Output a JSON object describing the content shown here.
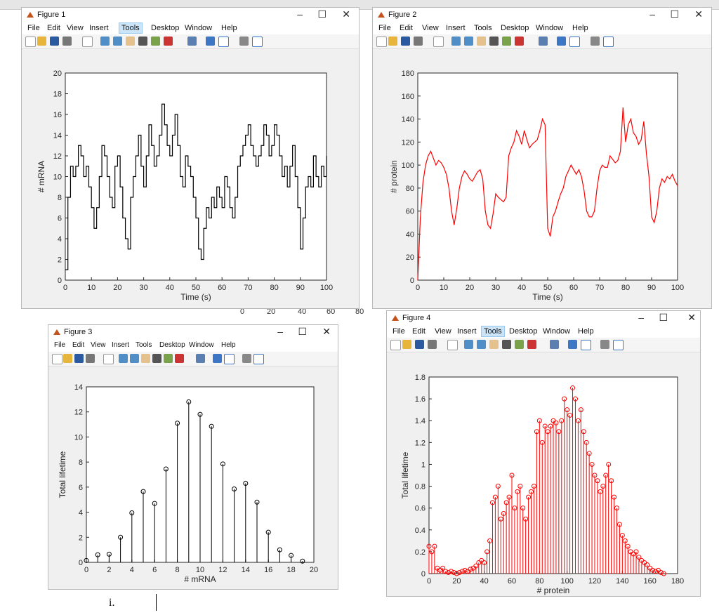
{
  "colors": {
    "black": "#000000",
    "red": "#ff0000",
    "window_bg": "#f0f0f0",
    "accent": "#cce4f7"
  },
  "menus": [
    "File",
    "Edit",
    "View",
    "Insert",
    "Tools",
    "Desktop",
    "Window",
    "Help"
  ],
  "window_controls": {
    "minimize": "–",
    "maximize": "☐",
    "close": "✕"
  },
  "background": {
    "tick_labels": [
      "0",
      "20",
      "40",
      "60",
      "80"
    ]
  },
  "caption": "i.",
  "figures": {
    "f1": {
      "title": "Figure 1",
      "xlabel": "Time (s)",
      "ylabel": "# mRNA",
      "xticks": [
        "0",
        "10",
        "20",
        "30",
        "40",
        "50",
        "60",
        "70",
        "80",
        "90",
        "100"
      ],
      "yticks": [
        "0",
        "2",
        "4",
        "6",
        "8",
        "10",
        "12",
        "14",
        "16",
        "18",
        "20"
      ]
    },
    "f2": {
      "title": "Figure 2",
      "xlabel": "Time (s)",
      "ylabel": "# protein",
      "xticks": [
        "0",
        "10",
        "20",
        "30",
        "40",
        "50",
        "60",
        "70",
        "80",
        "90",
        "100"
      ],
      "yticks": [
        "0",
        "20",
        "40",
        "60",
        "80",
        "100",
        "120",
        "140",
        "160",
        "180"
      ]
    },
    "f3": {
      "title": "Figure 3",
      "xlabel": "# mRNA",
      "ylabel": "Total lifetime",
      "xticks": [
        "0",
        "2",
        "4",
        "6",
        "8",
        "10",
        "12",
        "14",
        "16",
        "18",
        "20"
      ],
      "yticks": [
        "0",
        "2",
        "4",
        "6",
        "8",
        "10",
        "12",
        "14"
      ]
    },
    "f4": {
      "title": "Figure 4",
      "xlabel": "# protein",
      "ylabel": "Total lifetime",
      "xticks": [
        "0",
        "20",
        "40",
        "60",
        "80",
        "100",
        "120",
        "140",
        "160",
        "180"
      ],
      "yticks": [
        "0",
        "0.2",
        "0.4",
        "0.6",
        "0.8",
        "1",
        "1.2",
        "1.4",
        "1.6",
        "1.8"
      ]
    }
  },
  "chart_data": [
    {
      "type": "line",
      "title": "",
      "xlabel": "Time (s)",
      "ylabel": "# mRNA",
      "xlim": [
        0,
        100
      ],
      "ylim": [
        0,
        20
      ],
      "grid": false,
      "series": [
        {
          "color": "#000000",
          "step": true,
          "x": [
            0,
            1,
            2,
            3,
            4,
            5,
            6,
            7,
            8,
            9,
            10,
            11,
            12,
            13,
            14,
            15,
            16,
            17,
            18,
            19,
            20,
            21,
            22,
            23,
            24,
            25,
            26,
            27,
            28,
            29,
            30,
            31,
            32,
            33,
            34,
            35,
            36,
            37,
            38,
            39,
            40,
            41,
            42,
            43,
            44,
            45,
            46,
            47,
            48,
            49,
            50,
            51,
            52,
            53,
            54,
            55,
            56,
            57,
            58,
            59,
            60,
            61,
            62,
            63,
            64,
            65,
            66,
            67,
            68,
            69,
            70,
            71,
            72,
            73,
            74,
            75,
            76,
            77,
            78,
            79,
            80,
            81,
            82,
            83,
            84,
            85,
            86,
            87,
            88,
            89,
            90,
            91,
            92,
            93,
            94,
            95,
            96,
            97,
            98,
            99,
            100
          ],
          "y": [
            1,
            8,
            11,
            10,
            11,
            13,
            12,
            10,
            11,
            9,
            7,
            5,
            7,
            10,
            13,
            12,
            10,
            8,
            7,
            11,
            12,
            9,
            6,
            4,
            3,
            8,
            10,
            12,
            14,
            11,
            9,
            12,
            15,
            13,
            11,
            12,
            14,
            17,
            15,
            13,
            12,
            14,
            16,
            13,
            10,
            9,
            12,
            11,
            10,
            8,
            6,
            3,
            2,
            5,
            7,
            6,
            8,
            7,
            9,
            8,
            7,
            10,
            9,
            7,
            6,
            8,
            11,
            12,
            13,
            14,
            15,
            13,
            12,
            11,
            12,
            13,
            15,
            14,
            12,
            13,
            15,
            14,
            12,
            10,
            11,
            9,
            11,
            13,
            10,
            7,
            3,
            6,
            9,
            10,
            9,
            12,
            10,
            9,
            11,
            10,
            12
          ]
        }
      ]
    },
    {
      "type": "line",
      "title": "",
      "xlabel": "Time (s)",
      "ylabel": "# protein",
      "xlim": [
        0,
        100
      ],
      "ylim": [
        0,
        180
      ],
      "grid": false,
      "series": [
        {
          "color": "#ff0000",
          "x": [
            0,
            1,
            2,
            3,
            4,
            5,
            6,
            7,
            8,
            9,
            10,
            11,
            12,
            13,
            14,
            15,
            16,
            17,
            18,
            19,
            20,
            21,
            22,
            23,
            24,
            25,
            26,
            27,
            28,
            29,
            30,
            31,
            32,
            33,
            34,
            35,
            36,
            37,
            38,
            39,
            40,
            41,
            42,
            43,
            44,
            45,
            46,
            47,
            48,
            49,
            50,
            51,
            52,
            53,
            54,
            55,
            56,
            57,
            58,
            59,
            60,
            61,
            62,
            63,
            64,
            65,
            66,
            67,
            68,
            69,
            70,
            71,
            72,
            73,
            74,
            75,
            76,
            77,
            78,
            79,
            80,
            81,
            82,
            83,
            84,
            85,
            86,
            87,
            88,
            89,
            90,
            91,
            92,
            93,
            94,
            95,
            96,
            97,
            98,
            99,
            100
          ],
          "y": [
            0,
            55,
            85,
            100,
            108,
            112,
            106,
            100,
            104,
            102,
            98,
            92,
            80,
            60,
            48,
            62,
            80,
            90,
            95,
            92,
            88,
            86,
            90,
            94,
            96,
            88,
            60,
            48,
            45,
            58,
            75,
            72,
            70,
            68,
            72,
            108,
            115,
            120,
            130,
            125,
            118,
            130,
            122,
            115,
            118,
            120,
            122,
            130,
            140,
            135,
            45,
            38,
            55,
            60,
            68,
            75,
            80,
            90,
            95,
            100,
            96,
            92,
            96,
            90,
            78,
            60,
            55,
            55,
            60,
            80,
            95,
            100,
            98,
            98,
            108,
            105,
            102,
            104,
            112,
            150,
            120,
            135,
            140,
            128,
            125,
            118,
            122,
            138,
            110,
            90,
            55,
            50,
            60,
            80,
            88,
            85,
            90,
            88,
            92,
            86,
            82
          ]
        }
      ]
    },
    {
      "type": "stem",
      "title": "",
      "xlabel": "# mRNA",
      "ylabel": "Total lifetime",
      "xlim": [
        0,
        20
      ],
      "ylim": [
        0,
        14
      ],
      "grid": false,
      "series": [
        {
          "color": "#000000",
          "x": [
            0,
            1,
            2,
            3,
            4,
            5,
            6,
            7,
            8,
            9,
            10,
            11,
            12,
            13,
            14,
            15,
            16,
            17,
            18,
            19
          ],
          "y": [
            0.15,
            0.6,
            0.65,
            2.0,
            3.95,
            5.65,
            4.7,
            7.45,
            11.1,
            12.8,
            11.8,
            10.85,
            7.85,
            5.85,
            6.3,
            4.8,
            2.4,
            1.0,
            0.55,
            0.1
          ]
        }
      ]
    },
    {
      "type": "stem",
      "title": "",
      "xlabel": "# protein",
      "ylabel": "Total lifetime",
      "xlim": [
        0,
        180
      ],
      "ylim": [
        0,
        1.8
      ],
      "grid": false,
      "series": [
        {
          "color": "#ff0000",
          "x": [
            0,
            2,
            4,
            6,
            8,
            10,
            12,
            14,
            16,
            18,
            20,
            22,
            24,
            26,
            28,
            30,
            32,
            34,
            36,
            38,
            40,
            42,
            44,
            46,
            48,
            50,
            52,
            54,
            56,
            58,
            60,
            62,
            64,
            66,
            68,
            70,
            72,
            74,
            76,
            78,
            80,
            82,
            84,
            86,
            88,
            90,
            92,
            94,
            96,
            98,
            100,
            102,
            104,
            106,
            108,
            110,
            112,
            114,
            116,
            118,
            120,
            122,
            124,
            126,
            128,
            130,
            132,
            134,
            136,
            138,
            140,
            142,
            144,
            146,
            148,
            150,
            152,
            154,
            156,
            158,
            160,
            162,
            164,
            166,
            168,
            170
          ],
          "y": [
            0.25,
            0.2,
            0.25,
            0.05,
            0.03,
            0.05,
            0.02,
            0.01,
            0.02,
            0.01,
            0.0,
            0.01,
            0.02,
            0.03,
            0.02,
            0.04,
            0.05,
            0.07,
            0.1,
            0.12,
            0.1,
            0.2,
            0.3,
            0.65,
            0.7,
            0.8,
            0.5,
            0.55,
            0.65,
            0.7,
            0.9,
            0.6,
            0.75,
            0.8,
            0.6,
            0.5,
            0.7,
            0.75,
            0.8,
            1.3,
            1.4,
            1.2,
            1.35,
            1.3,
            1.35,
            1.4,
            1.38,
            1.3,
            1.4,
            1.6,
            1.5,
            1.45,
            1.7,
            1.6,
            1.4,
            1.5,
            1.3,
            1.2,
            1.1,
            1.0,
            0.9,
            0.85,
            0.75,
            0.8,
            0.9,
            1.0,
            0.85,
            0.7,
            0.6,
            0.45,
            0.35,
            0.3,
            0.25,
            0.2,
            0.18,
            0.2,
            0.15,
            0.12,
            0.1,
            0.08,
            0.05,
            0.03,
            0.02,
            0.03,
            0.01,
            0.0
          ]
        }
      ]
    }
  ]
}
